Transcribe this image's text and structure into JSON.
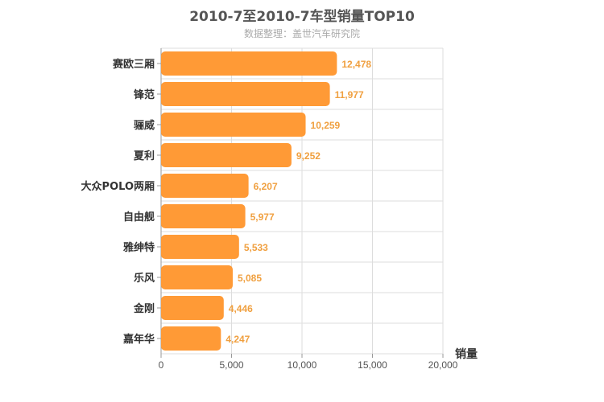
{
  "chart_data": {
    "type": "bar",
    "orientation": "horizontal",
    "title": "2010-7至2010-7车型销量TOP10",
    "subtitle": "数据整理：盖世汽车研究院",
    "xlabel": "",
    "ylabel": "销量",
    "categories": [
      "赛欧三厢",
      "锋范",
      "骊威",
      "夏利",
      "大众POLO两厢",
      "自由舰",
      "雅绅特",
      "乐风",
      "金刚",
      "嘉年华"
    ],
    "values": [
      12478,
      11977,
      10259,
      9252,
      6207,
      5977,
      5533,
      5085,
      4446,
      4247
    ],
    "value_labels": [
      "12,478",
      "11,977",
      "10,259",
      "9,252",
      "6,207",
      "5,977",
      "5,533",
      "5,085",
      "4,446",
      "4,247"
    ],
    "ylim": [
      0,
      20000
    ],
    "ticks": [
      0,
      5000,
      10000,
      15000,
      20000
    ],
    "tick_labels": [
      "0",
      "5,000",
      "10,000",
      "15,000",
      "20,000"
    ],
    "grid": true,
    "legend": "none",
    "colors": {
      "bar": "#ff9a36",
      "value_label": "#f0a040",
      "grid": "#dddddd",
      "axis": "#999999"
    }
  }
}
